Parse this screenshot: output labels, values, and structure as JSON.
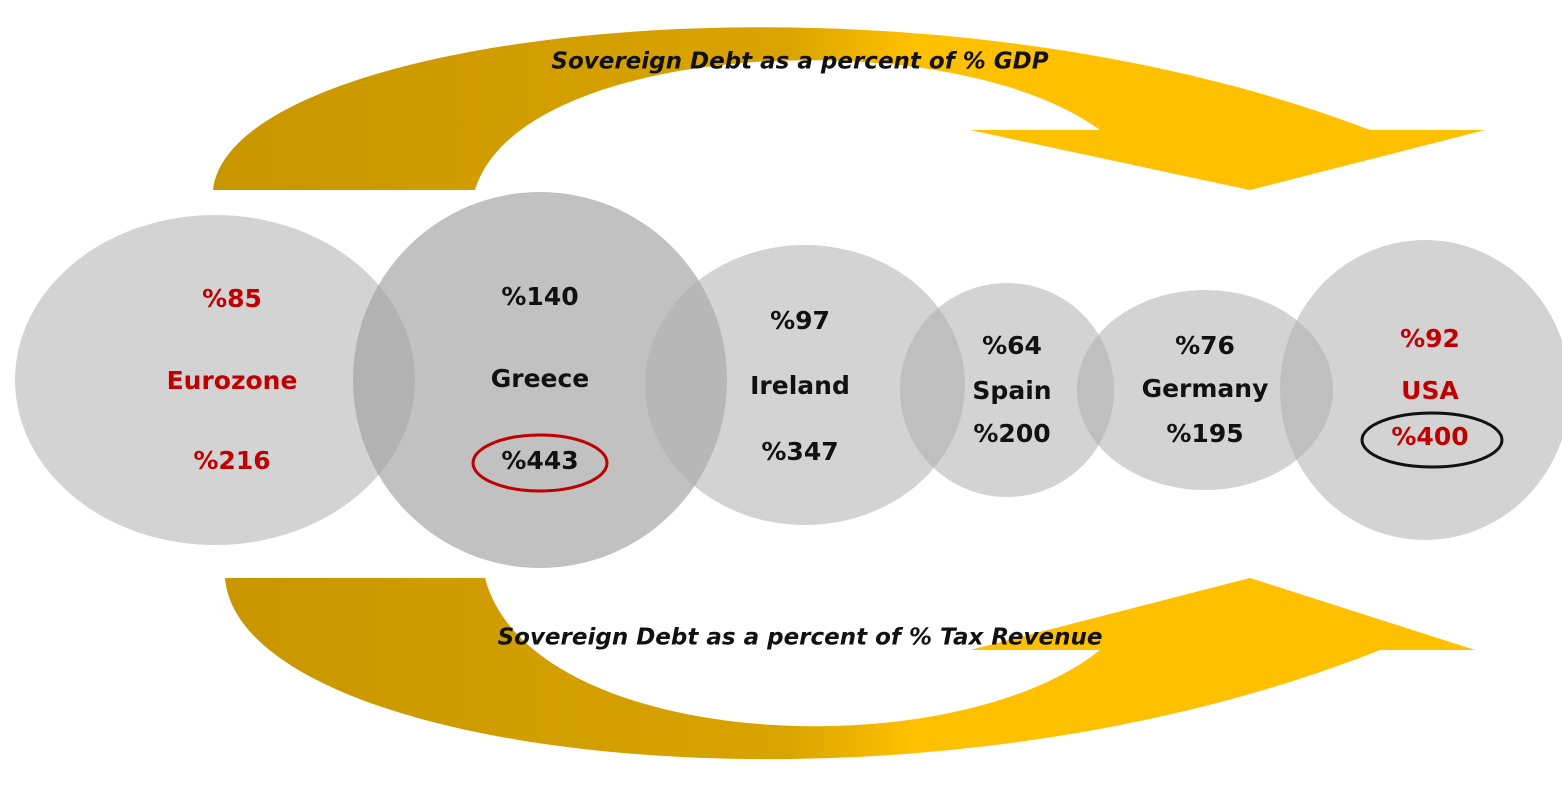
{
  "top_label": "Sovereign Debt as a percent of % GDP",
  "bottom_label": "Sovereign Debt as a percent of % Tax Revenue",
  "nodes": [
    {
      "name": "Eurozone",
      "gdp": "%85",
      "tax": "%216"
    },
    {
      "name": "Greece",
      "gdp": "%140",
      "tax": "%443"
    },
    {
      "name": "Ireland",
      "gdp": "%97",
      "tax": "%347"
    },
    {
      "name": "Spain",
      "gdp": "%64",
      "tax": "%200"
    },
    {
      "name": "Germany",
      "gdp": "%76",
      "tax": "%195"
    },
    {
      "name": "USA",
      "gdp": "%92",
      "tax": "%400"
    }
  ]
}
